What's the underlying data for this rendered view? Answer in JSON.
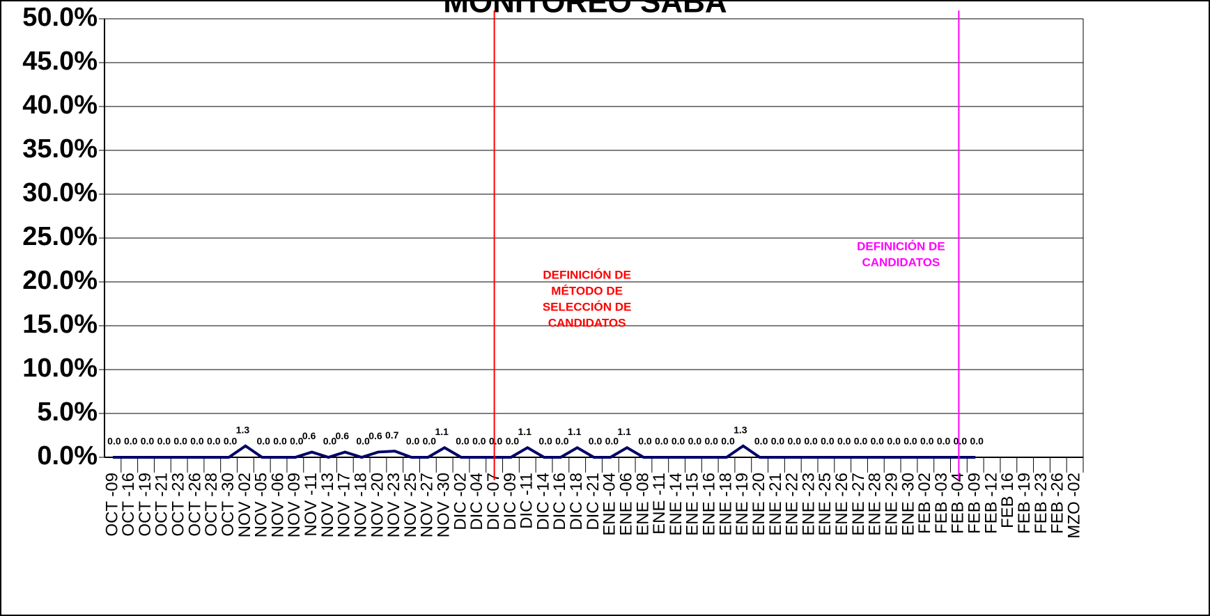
{
  "chart_data": {
    "type": "line",
    "title": "MONITOREO SABA",
    "categories": [
      "OCT -09",
      "OCT -16",
      "OCT -19",
      "OCT -21",
      "OCT -23",
      "OCT -26",
      "OCT -28",
      "OCT -30",
      "NOV -02",
      "NOV -05",
      "NOV -06",
      "NOV -09",
      "NOV -11",
      "NOV -13",
      "NOV -17",
      "NOV -18",
      "NOV -20",
      "NOV -23",
      "NOV -25",
      "NOV -27",
      "NOV -30",
      "DIC -02",
      "DIC -04",
      "DIC -07",
      "DIC -09",
      "DIC -11",
      "DIC -14",
      "DIC -16",
      "DIC -18",
      "DIC -21",
      "ENE -04",
      "ENE -06",
      "ENE -08",
      "ENE -11",
      "ENE -14",
      "ENE -15",
      "ENE -16",
      "ENE -18",
      "ENE -19",
      "ENE -20",
      "ENE -21",
      "ENE -22",
      "ENE -23",
      "ENE -25",
      "ENE -26",
      "ENE -27",
      "ENE -28",
      "ENE -29",
      "ENE -30",
      "FEB -02",
      "FEB -03",
      "FEB -04",
      "FEB -09",
      "FEB -12",
      "FEB 16",
      "FEB -19",
      "FEB -23",
      "FEB -26",
      "MZO -02"
    ],
    "series": [
      {
        "color": "#000066",
        "values": [
          0,
          0,
          0,
          0,
          0,
          0,
          0,
          0,
          1.3,
          0,
          0,
          0,
          0.6,
          0,
          0.6,
          0,
          0.6,
          0.7,
          0,
          0,
          1.1,
          0,
          0,
          0,
          0,
          1.1,
          0,
          0,
          1.1,
          0,
          0,
          1.1,
          0,
          0,
          0,
          0,
          0,
          0,
          1.3,
          0,
          0,
          0,
          0,
          0,
          0,
          0,
          0,
          0,
          0,
          0,
          0,
          0,
          0,
          null,
          null,
          null,
          null,
          null,
          null
        ],
        "value_labels": [
          "0.0",
          "0.0",
          "0.0",
          "0.0",
          "0.0",
          "0.0",
          "0.0",
          "0.0",
          "1.3",
          "0.0",
          "0.0",
          "0.0",
          "0.6",
          "0.0",
          "0.6",
          "0.0",
          "0.6",
          "0.7",
          "0.0",
          "0.0",
          "1.1",
          "0.0",
          "0.0",
          "0.0",
          "0.0",
          "1.1",
          "0.0",
          "0.0",
          "1.1",
          "0.0",
          "0.0",
          "1.1",
          "0.0",
          "0.0",
          "0.0",
          "0.0",
          "0.0",
          "0.0",
          "1.3",
          "0.0",
          "0.0",
          "0.0",
          "0.0",
          "0.0",
          "0.0",
          "0.0",
          "0.0",
          "0.0",
          "0.0",
          "0.0",
          "0.0",
          "0.0",
          "0.0",
          null,
          null,
          null,
          null,
          null,
          null
        ]
      }
    ],
    "ylim": [
      0,
      50
    ],
    "yticks": [
      {
        "value": 0,
        "label": "0.0%"
      },
      {
        "value": 5,
        "label": "5.0%"
      },
      {
        "value": 10,
        "label": "10.0%"
      },
      {
        "value": 15,
        "label": "15.0%"
      },
      {
        "value": 20,
        "label": "20.0%"
      },
      {
        "value": 25,
        "label": "25.0%"
      },
      {
        "value": 30,
        "label": "30.0%"
      },
      {
        "value": 35,
        "label": "35.0%"
      },
      {
        "value": 40,
        "label": "40.0%"
      },
      {
        "value": 45,
        "label": "45.0%"
      },
      {
        "value": 50,
        "label": "50.0%"
      }
    ],
    "grid": true,
    "annotations": [
      {
        "at": "DIC -07",
        "color": "#ff0000",
        "lines": [
          "DEFINICIÓN DE",
          "MÉTODO DE",
          "SELECCIÓN DE",
          "CANDIDATOS"
        ]
      },
      {
        "at": "FEB -04",
        "color": "#ff00ff",
        "lines": [
          "DEFINICIÓN DE",
          "CANDIDATOS"
        ]
      }
    ]
  }
}
